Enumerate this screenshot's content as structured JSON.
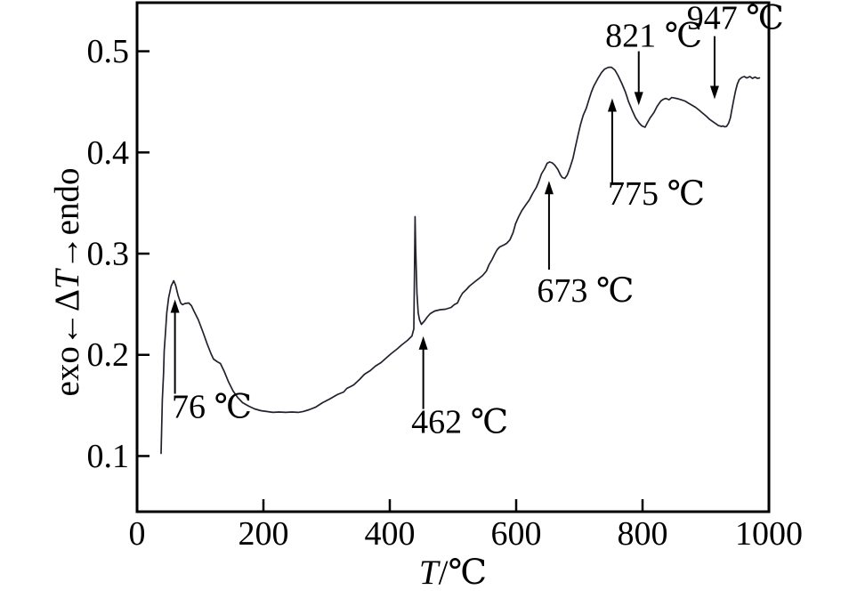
{
  "figure": {
    "background": "#ffffff",
    "axis_color": "#000000",
    "text_color": "#000000"
  },
  "chart_data": {
    "type": "line",
    "title": "",
    "xlabel_parts": [
      {
        "text": "T",
        "italic": true
      },
      {
        "text": "/℃",
        "italic": false
      }
    ],
    "ylabel_parts": [
      {
        "text": "exo←Δ",
        "italic": false
      },
      {
        "text": "T",
        "italic": true
      },
      {
        "text": "→endo",
        "italic": false
      }
    ],
    "xlim": [
      0,
      1000
    ],
    "ylim": [
      0.045,
      0.548
    ],
    "grid": false,
    "legend": null,
    "x_ticks": [
      0,
      200,
      400,
      600,
      800,
      1000
    ],
    "x_tick_labels": [
      "0",
      "200",
      "400",
      "600",
      "800",
      "1000"
    ],
    "y_ticks": [
      0.1,
      0.2,
      0.3,
      0.4,
      0.5
    ],
    "y_tick_labels": [
      "0.1",
      "0.2",
      "0.3",
      "0.4",
      "0.5"
    ],
    "series": [
      {
        "name": "DTA curve",
        "color": "#22222e",
        "points": [
          [
            38,
            0.1026
          ],
          [
            39,
            0.129
          ],
          [
            40,
            0.1554
          ],
          [
            42,
            0.1818
          ],
          [
            43,
            0.2037
          ],
          [
            45,
            0.2213
          ],
          [
            47,
            0.2415
          ],
          [
            50,
            0.2565
          ],
          [
            54,
            0.2679
          ],
          [
            58,
            0.2732
          ],
          [
            61,
            0.2688
          ],
          [
            65,
            0.2583
          ],
          [
            69,
            0.2512
          ],
          [
            72,
            0.2495
          ],
          [
            76,
            0.2508
          ],
          [
            82,
            0.2512
          ],
          [
            86,
            0.2486
          ],
          [
            90,
            0.2433
          ],
          [
            97,
            0.2345
          ],
          [
            104,
            0.2231
          ],
          [
            111,
            0.2108
          ],
          [
            117,
            0.2011
          ],
          [
            121,
            0.1958
          ],
          [
            127,
            0.1932
          ],
          [
            132,
            0.1914
          ],
          [
            138,
            0.1835
          ],
          [
            145,
            0.173
          ],
          [
            152,
            0.1642
          ],
          [
            159,
            0.158
          ],
          [
            167,
            0.1527
          ],
          [
            177,
            0.1492
          ],
          [
            186,
            0.1466
          ],
          [
            196,
            0.1448
          ],
          [
            205,
            0.144
          ],
          [
            215,
            0.1431
          ],
          [
            225,
            0.1435
          ],
          [
            235,
            0.1431
          ],
          [
            245,
            0.1435
          ],
          [
            255,
            0.1431
          ],
          [
            263,
            0.144
          ],
          [
            272,
            0.1457
          ],
          [
            283,
            0.1484
          ],
          [
            294,
            0.1528
          ],
          [
            305,
            0.1563
          ],
          [
            317,
            0.1607
          ],
          [
            327,
            0.1633
          ],
          [
            332,
            0.1668
          ],
          [
            338,
            0.1686
          ],
          [
            343,
            0.1703
          ],
          [
            352,
            0.1756
          ],
          [
            360,
            0.1809
          ],
          [
            369,
            0.1844
          ],
          [
            377,
            0.1888
          ],
          [
            386,
            0.1923
          ],
          [
            394,
            0.1967
          ],
          [
            402,
            0.2011
          ],
          [
            411,
            0.2055
          ],
          [
            419,
            0.2099
          ],
          [
            428,
            0.2143
          ],
          [
            435,
            0.2187
          ],
          [
            438,
            0.2257
          ],
          [
            439,
            0.2785
          ],
          [
            440,
            0.3365
          ],
          [
            441,
            0.3048
          ],
          [
            443,
            0.2609
          ],
          [
            445,
            0.2415
          ],
          [
            447,
            0.2345
          ],
          [
            450,
            0.2301
          ],
          [
            455,
            0.2336
          ],
          [
            459,
            0.2371
          ],
          [
            464,
            0.2407
          ],
          [
            471,
            0.2433
          ],
          [
            480,
            0.2446
          ],
          [
            488,
            0.2451
          ],
          [
            497,
            0.2468
          ],
          [
            502,
            0.2495
          ],
          [
            507,
            0.2512
          ],
          [
            511,
            0.2565
          ],
          [
            515,
            0.2609
          ],
          [
            521,
            0.2644
          ],
          [
            526,
            0.2679
          ],
          [
            533,
            0.2714
          ],
          [
            540,
            0.2749
          ],
          [
            547,
            0.2785
          ],
          [
            553,
            0.2829
          ],
          [
            557,
            0.289
          ],
          [
            562,
            0.2943
          ],
          [
            566,
            0.2996
          ],
          [
            570,
            0.304
          ],
          [
            574,
            0.3066
          ],
          [
            580,
            0.3084
          ],
          [
            585,
            0.3101
          ],
          [
            590,
            0.3136
          ],
          [
            595,
            0.3207
          ],
          [
            599,
            0.3295
          ],
          [
            604,
            0.3365
          ],
          [
            609,
            0.3426
          ],
          [
            615,
            0.3479
          ],
          [
            621,
            0.3532
          ],
          [
            626,
            0.3594
          ],
          [
            632,
            0.3655
          ],
          [
            636,
            0.3717
          ],
          [
            640,
            0.3787
          ],
          [
            645,
            0.384
          ],
          [
            649,
            0.3893
          ],
          [
            653,
            0.3906
          ],
          [
            657,
            0.3897
          ],
          [
            661,
            0.3875
          ],
          [
            666,
            0.3831
          ],
          [
            670,
            0.3778
          ],
          [
            673,
            0.3752
          ],
          [
            677,
            0.3743
          ],
          [
            681,
            0.3778
          ],
          [
            685,
            0.3848
          ],
          [
            690,
            0.3945
          ],
          [
            694,
            0.406
          ],
          [
            698,
            0.4174
          ],
          [
            702,
            0.4279
          ],
          [
            706,
            0.4367
          ],
          [
            711,
            0.4437
          ],
          [
            715,
            0.4517
          ],
          [
            719,
            0.4596
          ],
          [
            723,
            0.4657
          ],
          [
            729,
            0.4727
          ],
          [
            735,
            0.4789
          ],
          [
            740,
            0.4824
          ],
          [
            746,
            0.4842
          ],
          [
            751,
            0.4842
          ],
          [
            756,
            0.4815
          ],
          [
            761,
            0.4763
          ],
          [
            767,
            0.4684
          ],
          [
            773,
            0.4596
          ],
          [
            778,
            0.4499
          ],
          [
            784,
            0.4411
          ],
          [
            789,
            0.4341
          ],
          [
            795,
            0.4288
          ],
          [
            799,
            0.4262
          ],
          [
            804,
            0.4249
          ],
          [
            808,
            0.4297
          ],
          [
            812,
            0.4341
          ],
          [
            818,
            0.4394
          ],
          [
            823,
            0.4455
          ],
          [
            829,
            0.4508
          ],
          [
            833,
            0.4525
          ],
          [
            837,
            0.4534
          ],
          [
            842,
            0.4521
          ],
          [
            846,
            0.4543
          ],
          [
            850,
            0.4538
          ],
          [
            856,
            0.453
          ],
          [
            861,
            0.4521
          ],
          [
            867,
            0.4508
          ],
          [
            872,
            0.449
          ],
          [
            878,
            0.4468
          ],
          [
            884,
            0.4446
          ],
          [
            889,
            0.442
          ],
          [
            895,
            0.4389
          ],
          [
            901,
            0.4358
          ],
          [
            906,
            0.4327
          ],
          [
            912,
            0.4301
          ],
          [
            916,
            0.4283
          ],
          [
            920,
            0.4266
          ],
          [
            925,
            0.4257
          ],
          [
            927,
            0.4262
          ],
          [
            930,
            0.4253
          ],
          [
            933,
            0.4257
          ],
          [
            936,
            0.4288
          ],
          [
            939,
            0.4341
          ],
          [
            941,
            0.4411
          ],
          [
            944,
            0.4508
          ],
          [
            947,
            0.4604
          ],
          [
            950,
            0.4675
          ],
          [
            953,
            0.4719
          ],
          [
            957,
            0.4741
          ],
          [
            961,
            0.475
          ],
          [
            965,
            0.4736
          ],
          [
            970,
            0.475
          ],
          [
            974,
            0.4732
          ],
          [
            978,
            0.4745
          ],
          [
            982,
            0.4732
          ],
          [
            985,
            0.4736
          ]
        ]
      }
    ],
    "annotations": [
      {
        "label": "76 ℃",
        "direction": "up",
        "arrow_x": 60,
        "arrow_tip_y": 0.2547,
        "arrow_tail_y": 0.1615,
        "label_x": 55,
        "label_y": 0.1377,
        "anchor": "start"
      },
      {
        "label": "462 ℃",
        "direction": "up",
        "arrow_x": 453,
        "arrow_tip_y": 0.2184,
        "arrow_tail_y": 0.1465,
        "label_x": 434,
        "label_y": 0.1228,
        "anchor": "start"
      },
      {
        "label": "673 ℃",
        "direction": "up",
        "arrow_x": 652,
        "arrow_tip_y": 0.3719,
        "arrow_tail_y": 0.2842,
        "label_x": 633,
        "label_y": 0.2526,
        "anchor": "start"
      },
      {
        "label": "775 ℃",
        "direction": "up",
        "arrow_x": 752,
        "arrow_tip_y": 0.4535,
        "arrow_tail_y": 0.3693,
        "label_x": 745,
        "label_y": 0.3482,
        "anchor": "start"
      },
      {
        "label": "821 ℃",
        "direction": "down",
        "arrow_x": 794,
        "arrow_tip_y": 0.4465,
        "arrow_tail_y": 0.5,
        "label_x": 741,
        "label_y": 0.5044,
        "anchor": "start"
      },
      {
        "label": "947 ℃",
        "direction": "down",
        "arrow_x": 914,
        "arrow_tip_y": 0.4526,
        "arrow_tail_y": 0.5149,
        "label_x": 870,
        "label_y": 0.5219,
        "anchor": "start"
      }
    ]
  }
}
